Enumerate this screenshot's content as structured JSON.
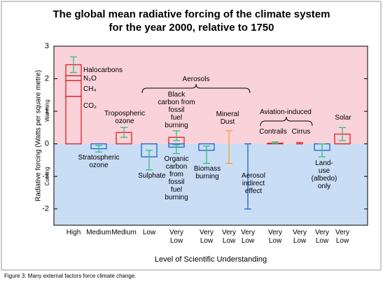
{
  "chart_data": {
    "type": "bar",
    "title": "The global mean radiative forcing of the climate system\nfor the year 2000, relative to 1750",
    "y_label": "Radiative forcing (Watts per square metre)",
    "warming_label": "Warming",
    "cooling_label": "Cooling",
    "x_label": "Level of Scientific Understanding",
    "caption": "Figure 3: Many external factors force climate change.",
    "ylim": [
      -2.5,
      3
    ],
    "yticks": [
      -2,
      -1,
      0,
      1,
      2,
      3
    ],
    "categories": [
      "High",
      "Medium",
      "Medium",
      "Low",
      "Very\nLow",
      "Very\nLow",
      "Very\nLow",
      "Very\nLow",
      "Very\nLow",
      "Very\nLow",
      "Very\nLow",
      "Very\nLow"
    ],
    "groups": [
      {
        "label": "Aerosols"
      },
      {
        "label": "Aviation-induced"
      }
    ],
    "forcings": [
      [
        {
          "segments": [
            {
              "label": "CO₂",
              "value": 1.46
            },
            {
              "label": "CH₄",
              "value": 0.48
            },
            {
              "label": "N₂O",
              "value": 0.15
            },
            {
              "label": "Halocarbons",
              "value": 0.34
            }
          ],
          "range": [
            2.19,
            2.67
          ],
          "color": "#e02020",
          "range_color": "#30c080"
        }
      ],
      [
        {
          "label": "Stratospheric\nozone",
          "value": -0.15,
          "range": [
            -0.25,
            -0.05
          ],
          "color": "#2060d0",
          "range_color": "#30c080"
        }
      ],
      [
        {
          "label": "Tropospheric\nozone",
          "value": 0.35,
          "range": [
            0.2,
            0.5
          ],
          "color": "#e02020",
          "range_color": "#30c080"
        }
      ],
      [
        {
          "label": "Sulphate",
          "value": -0.4,
          "range": [
            -0.8,
            -0.2
          ],
          "color": "#2060d0",
          "range_color": "#30c080"
        }
      ],
      [
        {
          "label": "Black\ncarbon from\nfossil\nfuel\nburning",
          "value": 0.2,
          "range": [
            0.1,
            0.4
          ],
          "color": "#e02020",
          "range_color": "#30c080"
        },
        {
          "label": "Organic\ncarbon\nfrom\nfossil\nfuel\nburning",
          "value": -0.1,
          "range": [
            -0.3,
            -0.03
          ],
          "color": "#2060d0",
          "range_color": "#30c080"
        }
      ],
      [
        {
          "label": "Biomass\nburning",
          "value": -0.2,
          "range": [
            -0.6,
            -0.07
          ],
          "color": "#2060d0",
          "range_color": "#30c080"
        }
      ],
      [
        {
          "label": "Mineral\nDust",
          "value": null,
          "range": [
            -0.6,
            0.4
          ],
          "color": "#f0a030",
          "range_color": "#f0a030"
        }
      ],
      [
        {
          "label": "Aerosol\nindirect\neffect",
          "value": null,
          "range": [
            -2,
            0
          ],
          "color": "#2060d0",
          "range_color": "#2060d0"
        }
      ],
      [
        {
          "label": "Contrails",
          "value": 0.02,
          "range": [
            0.005,
            0.06
          ],
          "color": "#e02020",
          "range_color": "#30c080"
        }
      ],
      [
        {
          "label": "Cirrus",
          "value": null,
          "range": [
            0,
            0.04
          ],
          "color": "#e02020",
          "range_color": "#e02020"
        }
      ],
      [
        {
          "label": "Land-\nuse\n(albedo)\nonly",
          "value": -0.2,
          "range": [
            -0.4,
            0
          ],
          "color": "#2060d0",
          "range_color": "#30c080"
        }
      ],
      [
        {
          "label": "Solar",
          "value": 0.3,
          "range": [
            0.1,
            0.5
          ],
          "color": "#e02020",
          "range_color": "#30c080"
        }
      ]
    ]
  }
}
